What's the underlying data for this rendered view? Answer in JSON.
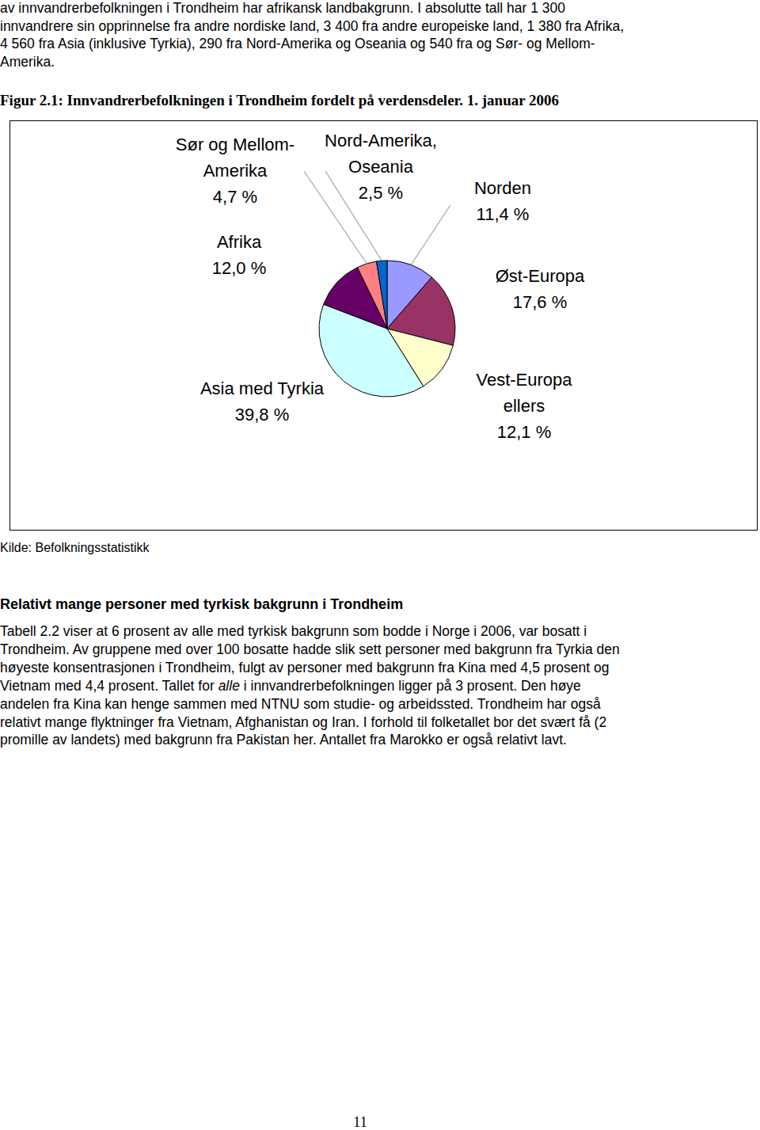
{
  "document": {
    "top_lines": [
      "av innvandrerbefolkningen i Trondheim har afrikansk landbakgrunn. I absolutte tall har 1 300",
      "innvandrere sin opprinnelse fra andre nordiske land, 3 400 fra andre europeiske land, 1 380 fra Afrika,",
      "4 560 fra Asia (inklusive Tyrkia), 290 fra Nord-Amerika og Oseania og 540 fra og Sør- og Mellom-",
      "Amerika."
    ],
    "figure_caption": "Figur 2.1: Innvandrerbefolkningen i Trondheim fordelt på verdensdeler. 1. januar 2006",
    "source": "Kilde: Befolkningsstatistikk",
    "heading": "Relativt mange personer med tyrkisk bakgrunn i Trondheim",
    "body_lines": [
      [
        {
          "text": "Tabell 2.2 viser at 6 prosent av alle med tyrkisk bakgrunn som bodde i Norge i 2006, var bosatt i"
        }
      ],
      [
        {
          "text": "Trondheim. Av gruppene med over 100 bosatte hadde slik sett personer med bakgrunn fra Tyrkia den"
        }
      ],
      [
        {
          "text": "høyeste konsentrasjonen i Trondheim, fulgt av personer med bakgrunn fra Kina med 4,5 prosent og"
        }
      ],
      [
        {
          "text": "Vietnam med 4,4 prosent. Tallet for "
        },
        {
          "text": "alle",
          "italic": true
        },
        {
          "text": " i innvandrerbefolkningen ligger på 3 prosent. Den høye"
        }
      ],
      [
        {
          "text": "andelen fra Kina kan henge sammen med NTNU som studie- og arbeidssted. Trondheim har også"
        }
      ],
      [
        {
          "text": "relativt mange flyktninger fra Vietnam, Afghanistan og Iran. I forhold til folketallet bor det svært få (2"
        }
      ],
      [
        {
          "text": "promille av landets) med bakgrunn fra Pakistan her. Antallet fra Marokko er også relativt lavt."
        }
      ]
    ],
    "page_number": "11"
  },
  "chart_data": {
    "type": "pie",
    "categories": [
      "Norden",
      "Øst-Europa",
      "Vest-Europa\nellers",
      "Asia med Tyrkia",
      "Afrika",
      "Sør og Mellom-\nAmerika",
      "Nord-Amerika,\nOseania"
    ],
    "values": [
      11.4,
      17.6,
      12.1,
      39.8,
      12.0,
      4.7,
      2.5
    ],
    "value_labels": [
      "11,4 %",
      "17,6 %",
      "12,1 %",
      "39,8 %",
      "12,0 %",
      "4,7 %",
      "2,5 %"
    ],
    "colors": [
      "#9999ff",
      "#993366",
      "#ffffcc",
      "#ccffff",
      "#660066",
      "#ff8080",
      "#0066cc"
    ],
    "data_labels": true
  }
}
